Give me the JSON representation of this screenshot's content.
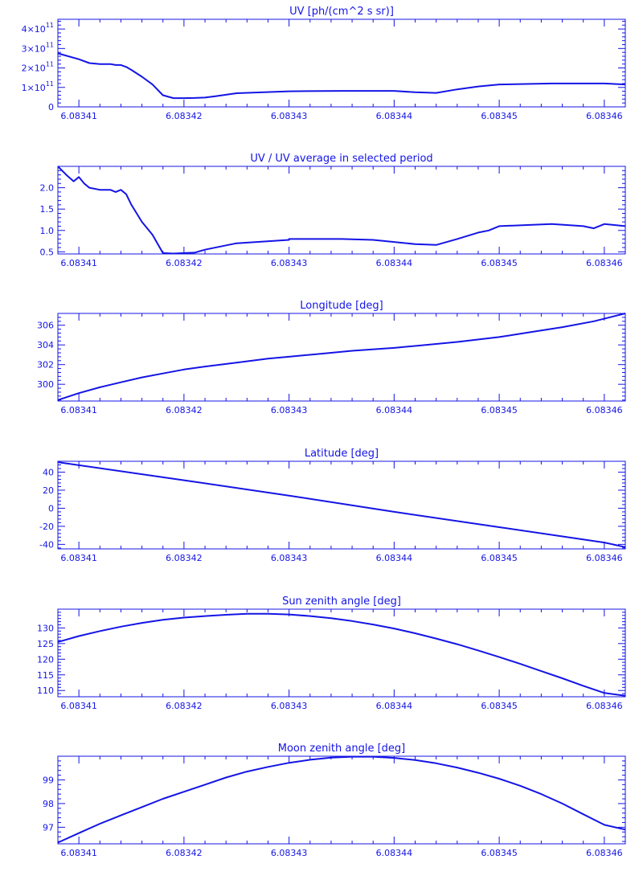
{
  "chart_data": [
    {
      "type": "line",
      "title": "UV [ph/(cm^2 s sr)]",
      "xlim": [
        6.083408,
        6.083462
      ],
      "ylim": [
        0,
        450000000000.0
      ],
      "xticks": [
        6.08341,
        6.08342,
        6.08343,
        6.08344,
        6.08345,
        6.08346
      ],
      "xtick_labels": [
        "6.08341",
        "6.08342",
        "6.08343",
        "6.08344",
        "6.08345",
        "6.08346"
      ],
      "yticks": [
        0,
        100000000000.0,
        200000000000.0,
        300000000000.0,
        400000000000.0
      ],
      "ytick_labels": [
        {
          "base": "0",
          "exp": ""
        },
        {
          "base": "1×10",
          "exp": "11"
        },
        {
          "base": "2×10",
          "exp": "11"
        },
        {
          "base": "3×10",
          "exp": "11"
        },
        {
          "base": "4×10",
          "exp": "11"
        }
      ],
      "series": [
        {
          "x": [
            6.083408,
            6.08341,
            6.083411,
            6.083412,
            6.083413,
            6.0834135,
            6.083414,
            6.0834145,
            6.083415,
            6.083416,
            6.083417,
            6.083418,
            6.083419,
            6.08342,
            6.083421,
            6.083422,
            6.083423,
            6.083425,
            6.08343,
            6.083435,
            6.08344,
            6.083442,
            6.083444,
            6.083446,
            6.083448,
            6.08345,
            6.083455,
            6.08346,
            6.083462
          ],
          "y": [
            275000000000.0,
            245000000000.0,
            225000000000.0,
            220000000000.0,
            220000000000.0,
            215000000000.0,
            215000000000.0,
            205000000000.0,
            190000000000.0,
            155000000000.0,
            115000000000.0,
            60000000000.0,
            45000000000.0,
            45000000000.0,
            46000000000.0,
            48000000000.0,
            55000000000.0,
            70000000000.0,
            80000000000.0,
            82000000000.0,
            82000000000.0,
            75000000000.0,
            72000000000.0,
            90000000000.0,
            105000000000.0,
            115000000000.0,
            120000000000.0,
            120000000000.0,
            115000000000.0
          ]
        }
      ]
    },
    {
      "type": "line",
      "title": "UV / UV average in selected period",
      "xlim": [
        6.083408,
        6.083462
      ],
      "ylim": [
        0.45,
        2.5
      ],
      "xticks": [
        6.08341,
        6.08342,
        6.08343,
        6.08344,
        6.08345,
        6.08346
      ],
      "xtick_labels": [
        "6.08341",
        "6.08342",
        "6.08343",
        "6.08344",
        "6.08345",
        "6.08346"
      ],
      "yticks": [
        0.5,
        1.0,
        1.5,
        2.0
      ],
      "ytick_labels": [
        {
          "base": "0.5",
          "exp": ""
        },
        {
          "base": "1.0",
          "exp": ""
        },
        {
          "base": "1.5",
          "exp": ""
        },
        {
          "base": "2.0",
          "exp": ""
        }
      ],
      "series": [
        {
          "x": [
            6.083408,
            6.0834088,
            6.0834095,
            6.08341,
            6.0834105,
            6.083411,
            6.083412,
            6.083413,
            6.0834135,
            6.083414,
            6.0834145,
            6.083415,
            6.083416,
            6.083417,
            6.083418,
            6.083419,
            6.08342,
            6.083421,
            6.083422,
            6.083425,
            6.08343,
            6.08343,
            6.083435,
            6.083438,
            6.083442,
            6.083444,
            6.083446,
            6.083448,
            6.083449,
            6.08345,
            6.083455,
            6.083458,
            6.083459,
            6.08346,
            6.083462
          ],
          "y": [
            2.5,
            2.3,
            2.15,
            2.25,
            2.1,
            2.0,
            1.95,
            1.95,
            1.9,
            1.95,
            1.85,
            1.6,
            1.2,
            0.9,
            0.47,
            0.46,
            0.47,
            0.48,
            0.55,
            0.7,
            0.78,
            0.8,
            0.8,
            0.78,
            0.68,
            0.66,
            0.8,
            0.95,
            1.0,
            1.1,
            1.15,
            1.1,
            1.05,
            1.15,
            1.1
          ]
        }
      ]
    },
    {
      "type": "line",
      "title": "Longitude [deg]",
      "xlim": [
        6.083408,
        6.083462
      ],
      "ylim": [
        298.3,
        307.2
      ],
      "xticks": [
        6.08341,
        6.08342,
        6.08343,
        6.08344,
        6.08345,
        6.08346
      ],
      "xtick_labels": [
        "6.08341",
        "6.08342",
        "6.08343",
        "6.08344",
        "6.08345",
        "6.08346"
      ],
      "yticks": [
        300,
        302,
        304,
        306
      ],
      "ytick_labels": [
        {
          "base": "300",
          "exp": ""
        },
        {
          "base": "302",
          "exp": ""
        },
        {
          "base": "304",
          "exp": ""
        },
        {
          "base": "306",
          "exp": ""
        }
      ],
      "series": [
        {
          "x": [
            6.083408,
            6.08341,
            6.083412,
            6.083414,
            6.083416,
            6.083418,
            6.08342,
            6.083422,
            6.083425,
            6.083428,
            6.08343,
            6.083433,
            6.083436,
            6.08344,
            6.083443,
            6.083446,
            6.08345,
            6.083453,
            6.083456,
            6.083459,
            6.083462
          ],
          "y": [
            298.4,
            299.1,
            299.7,
            300.2,
            300.7,
            301.1,
            301.5,
            301.8,
            302.2,
            302.6,
            302.8,
            303.1,
            303.4,
            303.7,
            304.0,
            304.3,
            304.8,
            305.3,
            305.8,
            306.4,
            307.2
          ]
        }
      ]
    },
    {
      "type": "line",
      "title": "Latitude [deg]",
      "xlim": [
        6.083408,
        6.083462
      ],
      "ylim": [
        -45,
        52
      ],
      "xticks": [
        6.08341,
        6.08342,
        6.08343,
        6.08344,
        6.08345,
        6.08346
      ],
      "xtick_labels": [
        "6.08341",
        "6.08342",
        "6.08343",
        "6.08344",
        "6.08345",
        "6.08346"
      ],
      "yticks": [
        -40,
        -20,
        0,
        20,
        40
      ],
      "ytick_labels": [
        {
          "base": "-40",
          "exp": ""
        },
        {
          "base": "-20",
          "exp": ""
        },
        {
          "base": "0",
          "exp": ""
        },
        {
          "base": "20",
          "exp": ""
        },
        {
          "base": "40",
          "exp": ""
        }
      ],
      "series": [
        {
          "x": [
            6.083408,
            6.08342,
            6.08343,
            6.08344,
            6.08345,
            6.08346,
            6.083462
          ],
          "y": [
            51,
            31,
            14,
            -4,
            -21,
            -38,
            -43
          ]
        }
      ]
    },
    {
      "type": "line",
      "title": "Sun zenith angle [deg]",
      "xlim": [
        6.083408,
        6.083462
      ],
      "ylim": [
        108,
        136
      ],
      "xticks": [
        6.08341,
        6.08342,
        6.08343,
        6.08344,
        6.08345,
        6.08346
      ],
      "xtick_labels": [
        "6.08341",
        "6.08342",
        "6.08343",
        "6.08344",
        "6.08345",
        "6.08346"
      ],
      "yticks": [
        110,
        115,
        120,
        125,
        130
      ],
      "ytick_labels": [
        {
          "base": "110",
          "exp": ""
        },
        {
          "base": "115",
          "exp": ""
        },
        {
          "base": "120",
          "exp": ""
        },
        {
          "base": "125",
          "exp": ""
        },
        {
          "base": "130",
          "exp": ""
        }
      ],
      "series": [
        {
          "x": [
            6.083408,
            6.08341,
            6.083412,
            6.083414,
            6.083416,
            6.083418,
            6.08342,
            6.083422,
            6.083424,
            6.083426,
            6.083428,
            6.08343,
            6.083432,
            6.083434,
            6.083436,
            6.083438,
            6.08344,
            6.083442,
            6.083444,
            6.083446,
            6.083448,
            6.08345,
            6.083452,
            6.083454,
            6.083456,
            6.083458,
            6.08346,
            6.083462
          ],
          "y": [
            125.5,
            127.4,
            129.0,
            130.4,
            131.6,
            132.6,
            133.3,
            133.8,
            134.2,
            134.5,
            134.5,
            134.3,
            133.8,
            133.1,
            132.2,
            131.1,
            129.8,
            128.3,
            126.6,
            124.8,
            122.8,
            120.7,
            118.5,
            116.2,
            113.9,
            111.5,
            109.2,
            108.3
          ]
        }
      ]
    },
    {
      "type": "line",
      "title": "Moon zenith angle [deg]",
      "xlim": [
        6.083408,
        6.083462
      ],
      "ylim": [
        96.3,
        100.0
      ],
      "xticks": [
        6.08341,
        6.08342,
        6.08343,
        6.08344,
        6.08345,
        6.08346
      ],
      "xtick_labels": [
        "6.08341",
        "6.08342",
        "6.08343",
        "6.08344",
        "6.08345",
        "6.08346"
      ],
      "yticks": [
        97,
        98,
        99
      ],
      "ytick_labels": [
        {
          "base": "97",
          "exp": ""
        },
        {
          "base": "98",
          "exp": ""
        },
        {
          "base": "99",
          "exp": ""
        }
      ],
      "series": [
        {
          "x": [
            6.083408,
            6.08341,
            6.083412,
            6.083414,
            6.083416,
            6.083418,
            6.08342,
            6.083422,
            6.083424,
            6.083426,
            6.083428,
            6.08343,
            6.083432,
            6.083434,
            6.083436,
            6.083438,
            6.08344,
            6.083442,
            6.083444,
            6.083446,
            6.083448,
            6.08345,
            6.083452,
            6.083454,
            6.083456,
            6.083458,
            6.08346,
            6.083462
          ],
          "y": [
            96.35,
            96.75,
            97.15,
            97.5,
            97.85,
            98.2,
            98.5,
            98.8,
            99.1,
            99.35,
            99.55,
            99.72,
            99.85,
            99.94,
            99.98,
            99.98,
            99.93,
            99.84,
            99.7,
            99.52,
            99.3,
            99.05,
            98.75,
            98.4,
            98.0,
            97.55,
            97.1,
            96.9
          ]
        }
      ]
    }
  ]
}
